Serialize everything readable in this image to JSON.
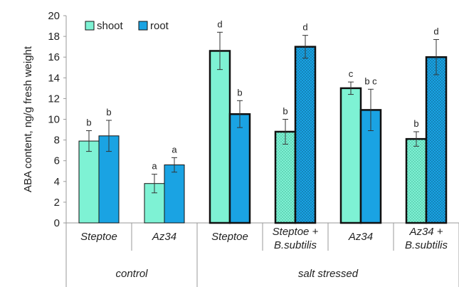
{
  "chart_data": {
    "type": "bar",
    "ylabel": "ABA content, ng/g fresh weight",
    "ylim": [
      0,
      20
    ],
    "yticks": [
      0,
      2,
      4,
      6,
      8,
      10,
      12,
      14,
      16,
      18,
      20
    ],
    "legend_position": "top-left",
    "categories": [
      {
        "lines": [
          "Steptoe"
        ],
        "group": "control",
        "treated": false
      },
      {
        "lines": [
          "Az34"
        ],
        "group": "control",
        "treated": false
      },
      {
        "lines": [
          "Steptoe"
        ],
        "group": "salt stressed",
        "treated": false
      },
      {
        "lines": [
          "Steptoe +",
          "B.subtilis"
        ],
        "group": "salt stressed",
        "treated": true
      },
      {
        "lines": [
          "Az34"
        ],
        "group": "salt stressed",
        "treated": false
      },
      {
        "lines": [
          "Az34 +",
          "B.subtilis"
        ],
        "group": "salt stressed",
        "treated": true
      }
    ],
    "groups": [
      {
        "label": "control",
        "span": [
          0,
          1
        ]
      },
      {
        "label": "salt stressed",
        "span": [
          2,
          5
        ]
      }
    ],
    "series": [
      {
        "name": "shoot",
        "color": "#7ef2d4",
        "values": [
          7.9,
          3.8,
          16.6,
          8.8,
          13.0,
          8.1
        ],
        "errors": [
          1.0,
          0.9,
          1.8,
          1.2,
          0.6,
          0.7
        ],
        "labels": [
          "b",
          "a",
          "d",
          "b",
          "c",
          "b"
        ]
      },
      {
        "name": "root",
        "color": "#1aa3e3",
        "values": [
          8.4,
          5.6,
          10.5,
          17.0,
          10.9,
          16.0
        ],
        "errors": [
          1.5,
          0.7,
          1.3,
          1.1,
          2.0,
          1.7
        ],
        "labels": [
          "b",
          "a",
          "b",
          "d",
          "b c",
          "d"
        ]
      }
    ]
  }
}
